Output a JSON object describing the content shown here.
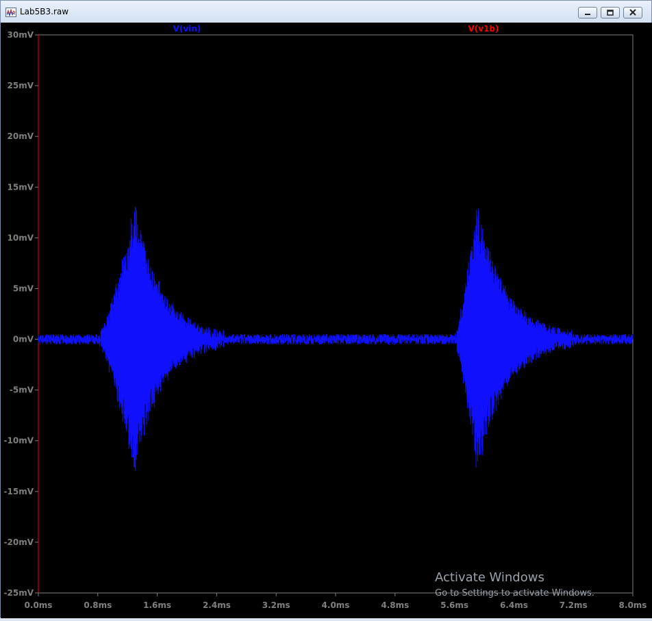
{
  "window": {
    "title": "Lab5B3.raw",
    "icon": "waveform-icon",
    "controls": {
      "minimize": "minimize-icon",
      "restore": "restore-icon",
      "close": "close-icon"
    }
  },
  "overlay": {
    "activate_title": "Activate Windows",
    "activate_subtitle": "Go to Settings to activate Windows."
  },
  "colors": {
    "background": "#000000",
    "trace_vin": "#1010ff",
    "trace_v1b_label": "#ff0000",
    "axis": "#7f7f7f",
    "tick_label": "#7f7f7f",
    "left_axis_line": "#ff0000"
  },
  "chart_data": {
    "type": "line",
    "series": [
      {
        "name": "V(vin)",
        "color": "#1010ff"
      },
      {
        "name": "V(v1b)",
        "color": "#ff0000"
      }
    ],
    "xlim": [
      0.0,
      8.0
    ],
    "ylim": [
      -25,
      30
    ],
    "x_ticks": [
      "0.0ms",
      "0.8ms",
      "1.6ms",
      "2.4ms",
      "3.2ms",
      "4.0ms",
      "4.8ms",
      "5.6ms",
      "6.4ms",
      "7.2ms",
      "8.0ms"
    ],
    "y_ticks": [
      "30mV",
      "25mV",
      "20mV",
      "15mV",
      "10mV",
      "5mV",
      "0mV",
      "-5mV",
      "-10mV",
      "-15mV",
      "-20mV",
      "-25mV"
    ],
    "grid": false,
    "vin_envelope": {
      "noise_mV": 0.5,
      "bursts": [
        {
          "start_ms": 0.8,
          "peak_ms": 1.3,
          "end_ms": 2.5,
          "peak_mV": 13.5
        },
        {
          "start_ms": 5.6,
          "peak_ms": 5.9,
          "end_ms": 7.2,
          "peak_mV": 13.5
        }
      ]
    }
  }
}
